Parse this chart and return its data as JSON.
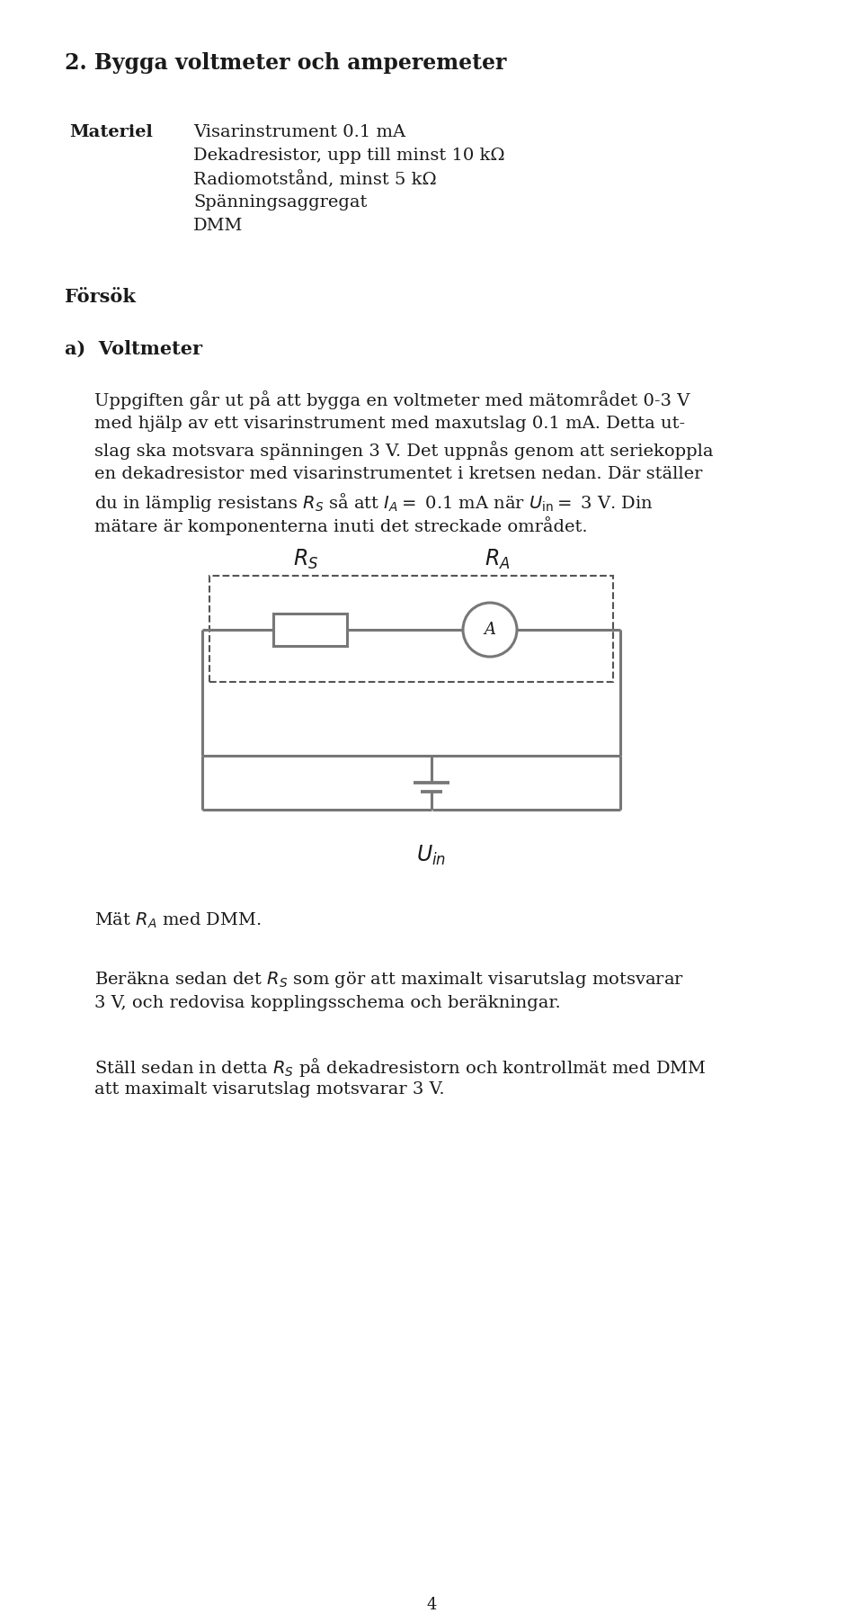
{
  "title": "2. Bygga voltmeter och amperemeter",
  "bg_color": "#ffffff",
  "text_color": "#1a1a1a",
  "materiel_label": "Materiel",
  "materiel_items": [
    "Visarinstrument 0.1 mA",
    "Dekadresistor, upp till minst 10 kΩ",
    "Radiomotstånd, minst 5 kΩ",
    "Spänningsaggregat",
    "DMM"
  ],
  "forsok_label": "Försök",
  "a_label": "a)  Voltmeter",
  "p1_lines": [
    "Uppgiften går ut på att bygga en voltmeter med mätområdet 0-3 V",
    "med hjälp av ett visarinstrument med maxutslag 0.1 mA. Detta ut-",
    "slag ska motsvara spänningen 3 V. Det uppnås genom att seriekoppla",
    "en dekadresistor med visarinstrumentet i kretsen nedan. Där ställer"
  ],
  "p1_math_line": "du in lämplig resistans $R_S$ så att $I_A=$ 0.1 mA när $U_{\\mathrm{in}}=$ 3 V. Din",
  "p1_last_line": "mätare är komponenterna inuti det streckade området.",
  "mat_ra_line": "Mät $R_A$ med DMM.",
  "p2_lines": [
    "Beräkna sedan det $R_S$ som gör att maximalt visarutslag motsvarar",
    "3 V, och redovisa kopplingsschema och beräkningar."
  ],
  "p3_lines": [
    "Ställ sedan in detta $R_S$ på dekadresistorn och kontrollmät med DMM",
    "att maximalt visarutslag motsvarar 3 V."
  ],
  "page_number": "4",
  "circuit_color": "#777777",
  "circuit_lw": 2.2,
  "dashed_color": "#555555"
}
